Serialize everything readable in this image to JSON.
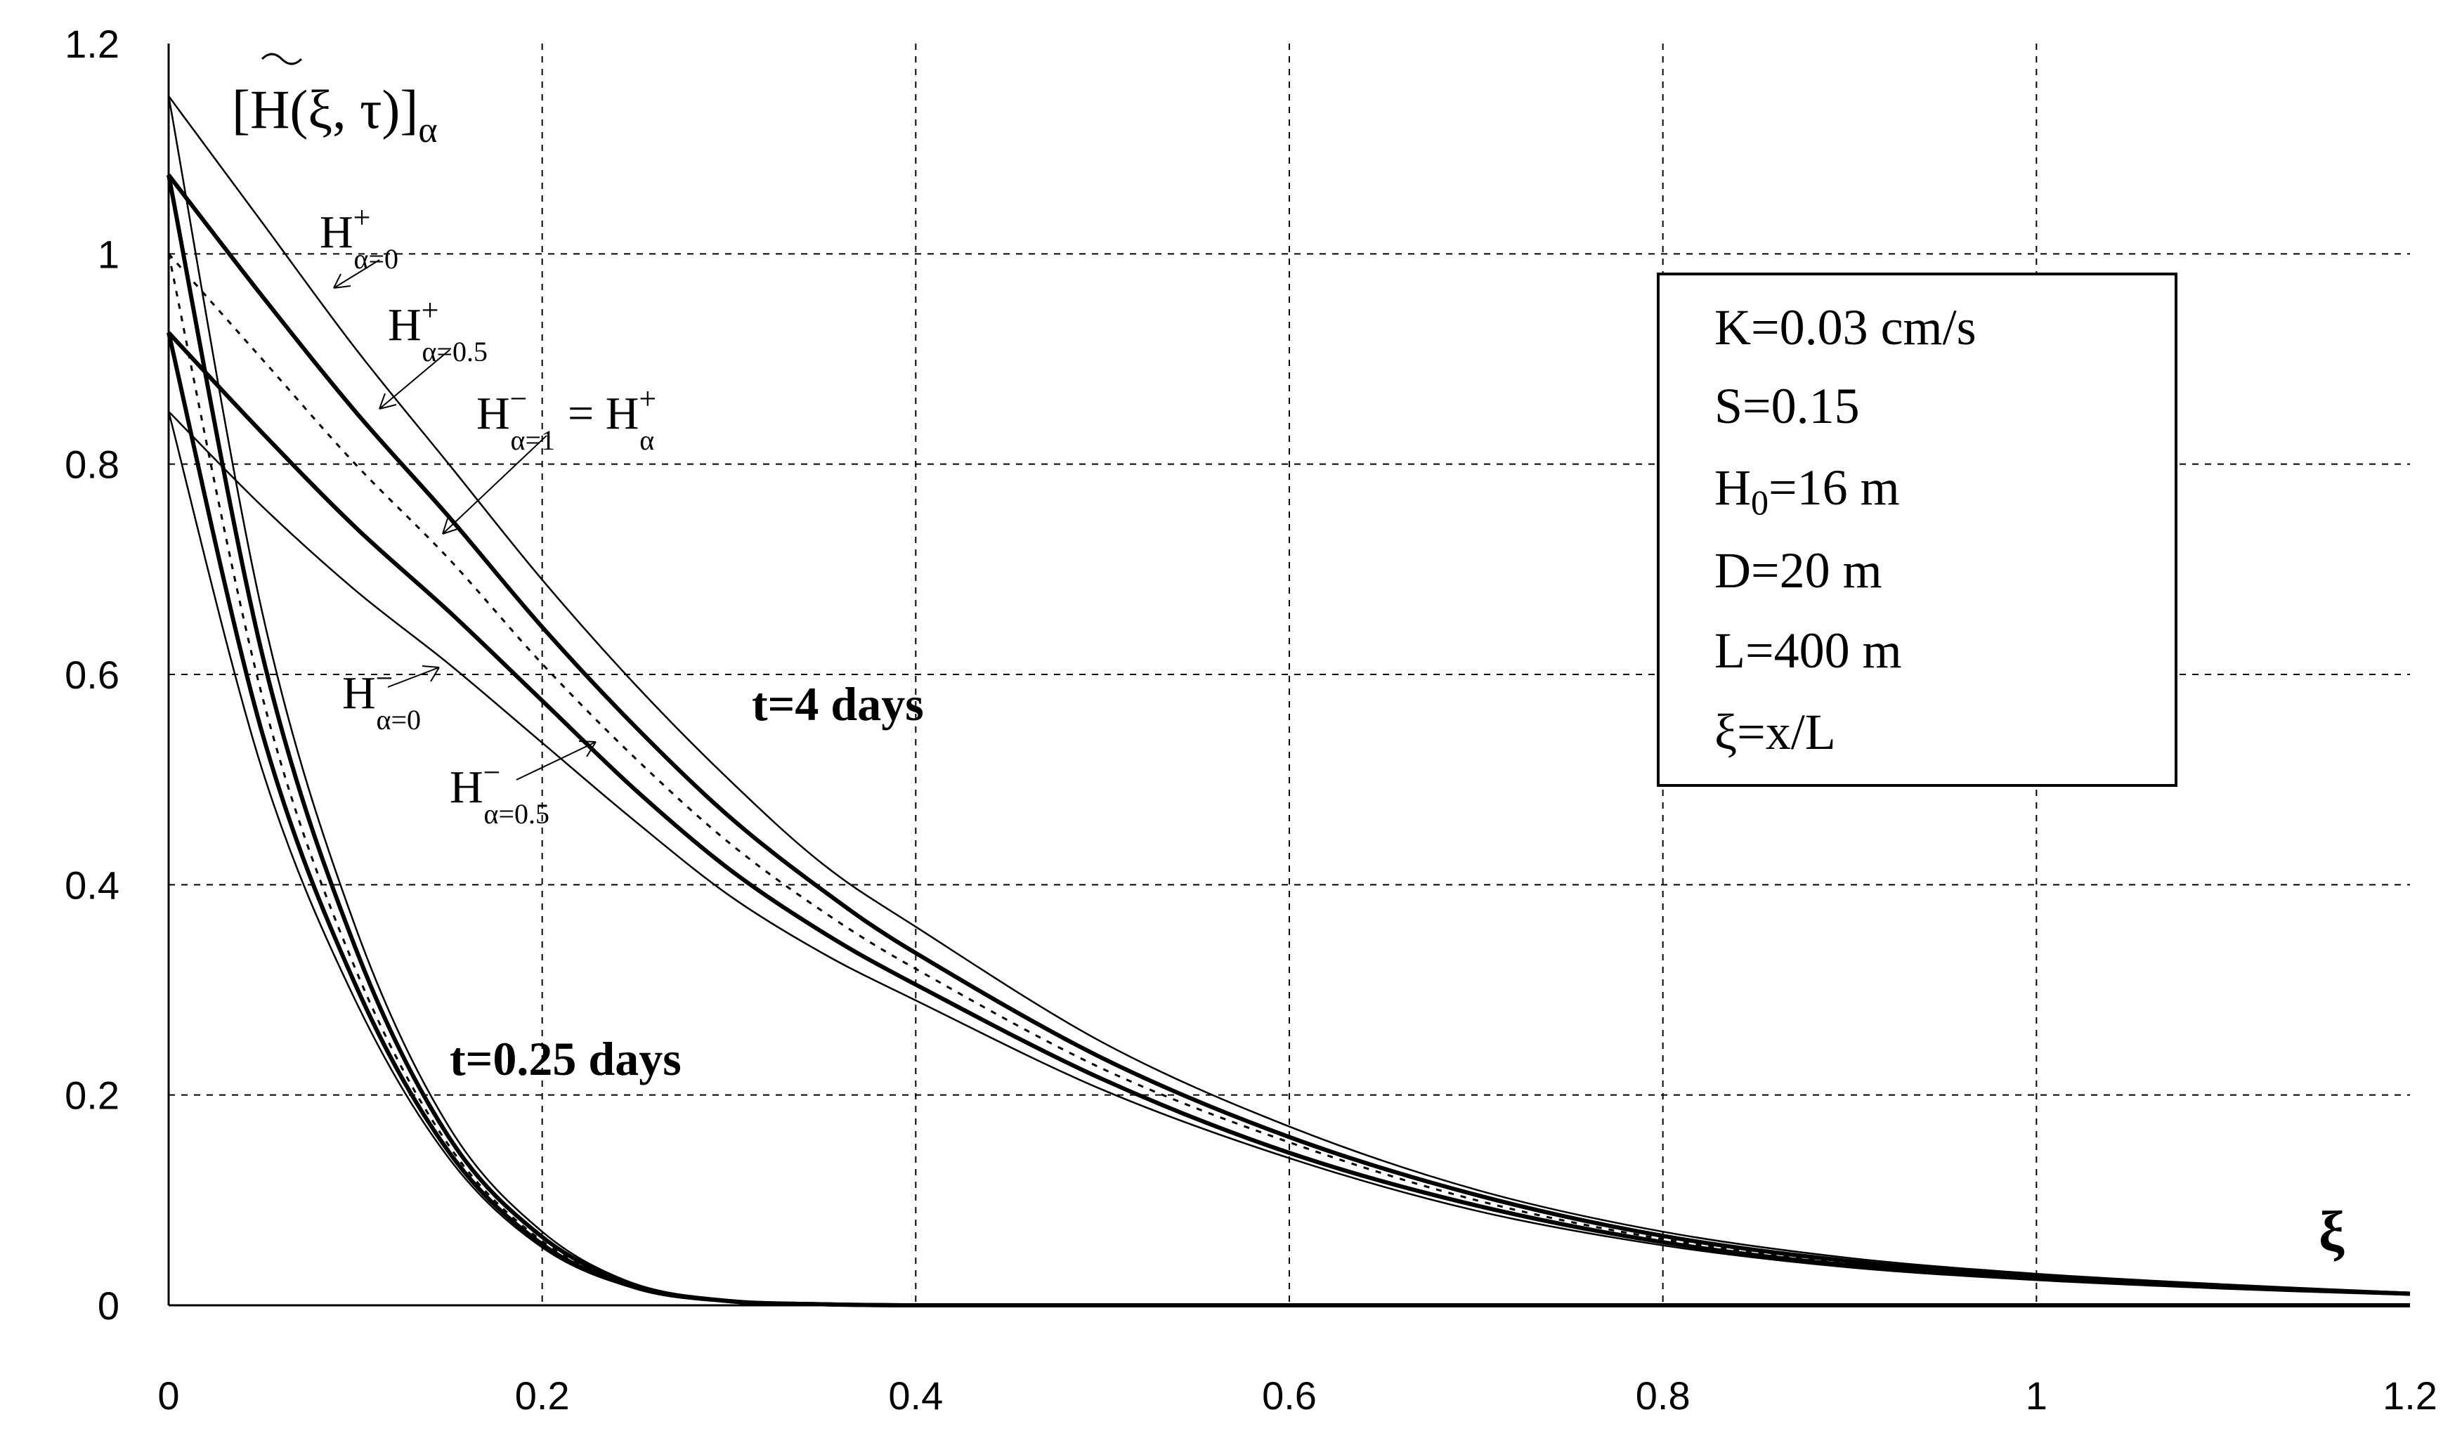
{
  "chart_data": {
    "type": "line",
    "title": "",
    "xlabel": "ξ",
    "ylabel": "[H̃(ξ,τ)]α",
    "xlim": [
      0,
      1.2
    ],
    "ylim": [
      0,
      1.2
    ],
    "grid": true,
    "x_ticks": [
      "0",
      "0.2",
      "0.4",
      "0.6",
      "0.8",
      "1",
      "1.2"
    ],
    "y_ticks": [
      "0",
      "0.2",
      "0.4",
      "0.6",
      "0.8",
      "1",
      "1.2"
    ],
    "x": [
      0,
      0.05,
      0.1,
      0.15,
      0.2,
      0.25,
      0.3,
      0.35,
      0.4,
      0.5,
      0.6,
      0.7,
      0.8,
      0.9,
      1.0,
      1.1,
      1.2
    ],
    "groups": [
      {
        "label": "t=4 days",
        "series": [
          {
            "name": "H+ α=0",
            "style": "thin",
            "values": [
              1.15,
              1.03,
              0.91,
              0.8,
              0.69,
              0.59,
              0.5,
              0.42,
              0.36,
              0.25,
              0.17,
              0.11,
              0.07,
              0.045,
              0.03,
              0.02,
              0.012
            ]
          },
          {
            "name": "H+ α=0.5",
            "style": "thick",
            "values": [
              1.075,
              0.96,
              0.85,
              0.75,
              0.645,
              0.55,
              0.465,
              0.395,
              0.335,
              0.235,
              0.16,
              0.105,
              0.066,
              0.042,
              0.028,
              0.018,
              0.011
            ]
          },
          {
            "name": "H− α=1 = H+ α",
            "style": "dashed",
            "values": [
              1.0,
              0.9,
              0.8,
              0.71,
              0.61,
              0.52,
              0.44,
              0.375,
              0.32,
              0.225,
              0.155,
              0.1,
              0.063,
              0.04,
              0.027,
              0.017,
              0.011
            ]
          },
          {
            "name": "H− α=0.5",
            "style": "thick",
            "values": [
              0.925,
              0.83,
              0.74,
              0.66,
              0.575,
              0.49,
              0.415,
              0.355,
              0.305,
              0.215,
              0.145,
              0.095,
              0.06,
              0.038,
              0.026,
              0.017,
              0.011
            ]
          },
          {
            "name": "H− α=0",
            "style": "thin",
            "values": [
              0.85,
              0.76,
              0.68,
              0.61,
              0.535,
              0.46,
              0.39,
              0.335,
              0.29,
              0.205,
              0.14,
              0.09,
              0.057,
              0.036,
              0.024,
              0.016,
              0.01
            ]
          }
        ]
      },
      {
        "label": "t=0.25 days",
        "series": [
          {
            "name": "H+ α=0",
            "style": "thin",
            "values": [
              1.15,
              0.66,
              0.36,
              0.17,
              0.07,
              0.02,
              0.004,
              0.001,
              0,
              0,
              0,
              0,
              0,
              0,
              0,
              0,
              0
            ]
          },
          {
            "name": "H+ α=0.5",
            "style": "thick",
            "values": [
              1.075,
              0.62,
              0.34,
              0.16,
              0.065,
              0.019,
              0.004,
              0.001,
              0,
              0,
              0,
              0,
              0,
              0,
              0,
              0,
              0
            ]
          },
          {
            "name": "H− α=1 = H+ α",
            "style": "dashed",
            "values": [
              1.0,
              0.58,
              0.32,
              0.152,
              0.061,
              0.018,
              0.004,
              0.001,
              0,
              0,
              0,
              0,
              0,
              0,
              0,
              0,
              0
            ]
          },
          {
            "name": "H− α=0.5",
            "style": "thick",
            "values": [
              0.925,
              0.545,
              0.305,
              0.146,
              0.058,
              0.017,
              0.004,
              0.001,
              0,
              0,
              0,
              0,
              0,
              0,
              0,
              0,
              0
            ]
          },
          {
            "name": "H− α=0",
            "style": "thin",
            "values": [
              0.85,
              0.51,
              0.29,
              0.14,
              0.055,
              0.016,
              0.004,
              0.001,
              0,
              0,
              0,
              0,
              0,
              0,
              0,
              0,
              0
            ]
          }
        ]
      }
    ],
    "annotations": {
      "time_long": "t=4 days",
      "time_short": "t=0.25 days",
      "labels": [
        {
          "base": "H",
          "sup": "+",
          "sub": "α=0",
          "target_series": "H+ α=0",
          "at_x": 0.25
        },
        {
          "base": "H",
          "sup": "+",
          "sub": "α=0.5",
          "target_series": "H+ α=0.5",
          "at_x": 0.35
        },
        {
          "base": "H",
          "sup": "−",
          "sub": "α=1",
          "eq": "= H",
          "sup2": "+",
          "sub2": "α",
          "target_series": "H− α=1 = H+ α",
          "at_x": 0.42
        },
        {
          "base": "H",
          "sup": "−",
          "sub": "α=0",
          "target_series": "H− α=0",
          "at_x": 0.375
        },
        {
          "base": "H",
          "sup": "−",
          "sub": "α=0.5",
          "target_series": "H− α=0.5",
          "at_x": 0.62
        }
      ]
    },
    "parameters": [
      "K=0.03 cm/s",
      "S=0.15",
      "H",
      "D=20 m",
      "L=400 m",
      "ξ=x/L"
    ],
    "parameter_h0": {
      "sub": "0",
      "rest": "=16 m"
    },
    "ylabel_parts": {
      "open": "[",
      "H": "H",
      "args": "(ξ, τ)]",
      "sub": "α"
    }
  }
}
